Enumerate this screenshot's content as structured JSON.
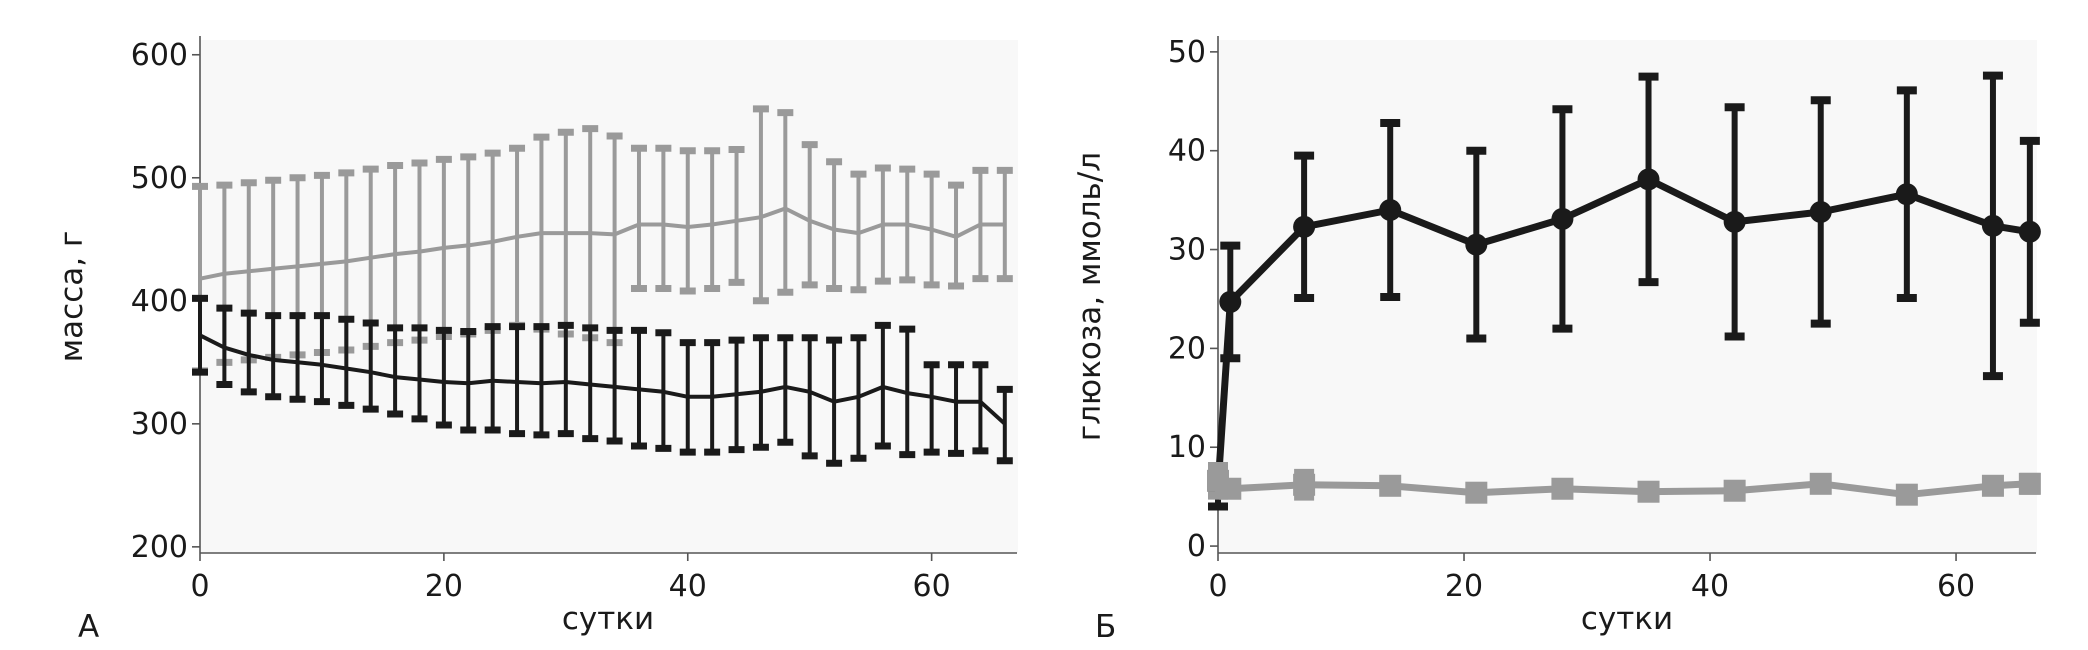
{
  "panels": {
    "a": {
      "letter": "А"
    },
    "b": {
      "letter": "Б"
    }
  },
  "colors": {
    "dark": "#1a1a1a",
    "light": "#9a9a9a",
    "axis": "#555555"
  },
  "chart_data": [
    {
      "type": "line",
      "panel": "А",
      "xlabel": "сутки",
      "ylabel": "масса, г",
      "xlim": [
        0,
        67
      ],
      "ylim": [
        195,
        612
      ],
      "xticks": [
        0,
        20,
        40,
        60
      ],
      "yticks": [
        200,
        300,
        400,
        500,
        600
      ],
      "error_bars": true,
      "series": [
        {
          "color": "#9a9a9a",
          "x": [
            0,
            2,
            4,
            6,
            8,
            10,
            12,
            14,
            16,
            18,
            20,
            22,
            24,
            26,
            28,
            30,
            32,
            34,
            36,
            38,
            40,
            42,
            44,
            46,
            48,
            50,
            52,
            54,
            56,
            58,
            60,
            62,
            64,
            66
          ],
          "y": [
            418,
            422,
            424,
            426,
            428,
            430,
            432,
            435,
            438,
            440,
            443,
            445,
            448,
            452,
            455,
            455,
            455,
            454,
            462,
            462,
            460,
            462,
            465,
            468,
            475,
            465,
            458,
            455,
            462,
            462,
            458,
            452,
            462,
            462
          ],
          "err_low": [
            75,
            72,
            72,
            72,
            72,
            72,
            72,
            72,
            72,
            72,
            72,
            72,
            72,
            72,
            78,
            82,
            85,
            88,
            52,
            52,
            52,
            52,
            50,
            68,
            68,
            52,
            48,
            46,
            46,
            45,
            45,
            40,
            44,
            44
          ],
          "err_high": [
            75,
            72,
            72,
            72,
            72,
            72,
            72,
            72,
            72,
            72,
            72,
            72,
            72,
            72,
            78,
            82,
            85,
            80,
            62,
            62,
            62,
            60,
            58,
            88,
            78,
            62,
            55,
            48,
            46,
            45,
            45,
            42,
            44,
            44
          ]
        },
        {
          "color": "#1a1a1a",
          "x": [
            0,
            2,
            4,
            6,
            8,
            10,
            12,
            14,
            16,
            18,
            20,
            22,
            24,
            26,
            28,
            30,
            32,
            34,
            36,
            38,
            40,
            42,
            44,
            46,
            48,
            50,
            52,
            54,
            56,
            58,
            60,
            62,
            64,
            66
          ],
          "y": [
            372,
            362,
            356,
            352,
            350,
            348,
            345,
            342,
            338,
            336,
            334,
            333,
            335,
            334,
            333,
            334,
            332,
            330,
            328,
            326,
            322,
            322,
            324,
            326,
            330,
            326,
            318,
            322,
            330,
            325,
            322,
            318,
            318,
            300
          ],
          "err_low": [
            30,
            30,
            30,
            30,
            30,
            30,
            30,
            30,
            30,
            32,
            35,
            38,
            40,
            42,
            42,
            42,
            44,
            44,
            46,
            46,
            45,
            45,
            45,
            45,
            45,
            52,
            50,
            50,
            48,
            50,
            45,
            42,
            40,
            30
          ],
          "err_high": [
            30,
            32,
            34,
            36,
            38,
            40,
            40,
            40,
            40,
            42,
            42,
            42,
            44,
            45,
            46,
            46,
            46,
            46,
            48,
            48,
            44,
            44,
            44,
            44,
            40,
            44,
            50,
            48,
            50,
            52,
            26,
            30,
            30,
            28
          ]
        }
      ]
    },
    {
      "type": "line",
      "panel": "Б",
      "xlabel": "сутки",
      "ylabel": "глюкоза, ммоль/л",
      "xlim": [
        0,
        66.5
      ],
      "ylim": [
        -0.7,
        51.2
      ],
      "xticks": [
        0,
        20,
        40,
        60
      ],
      "yticks": [
        0,
        10,
        20,
        30,
        40,
        50
      ],
      "error_bars": true,
      "series": [
        {
          "color": "#1a1a1a",
          "marker": "circle",
          "x": [
            0,
            1,
            7,
            14,
            21,
            28,
            35,
            42,
            49,
            56,
            63,
            66
          ],
          "y": [
            6,
            24.7,
            32.3,
            34,
            30.5,
            33.1,
            37.1,
            32.8,
            33.8,
            35.6,
            32.4,
            31.8
          ],
          "err": [
            2,
            5.7,
            7.2,
            8.8,
            9.5,
            11.1,
            10.4,
            11.6,
            11.3,
            10.5,
            15.2,
            9.2
          ]
        },
        {
          "color": "#9a9a9a",
          "marker": "square",
          "x": [
            0,
            1,
            7,
            14,
            21,
            28,
            35,
            42,
            49,
            56,
            63,
            66
          ],
          "y": [
            6.6,
            5.8,
            6.2,
            6.1,
            5.4,
            5.8,
            5.5,
            5.6,
            6.3,
            5.2,
            6.1,
            6.3
          ],
          "err": [
            1.5,
            0.5,
            1.2,
            0.5,
            0.5,
            0.5,
            0.5,
            0.5,
            0.6,
            0.6,
            0.6,
            0.7
          ]
        }
      ]
    }
  ]
}
